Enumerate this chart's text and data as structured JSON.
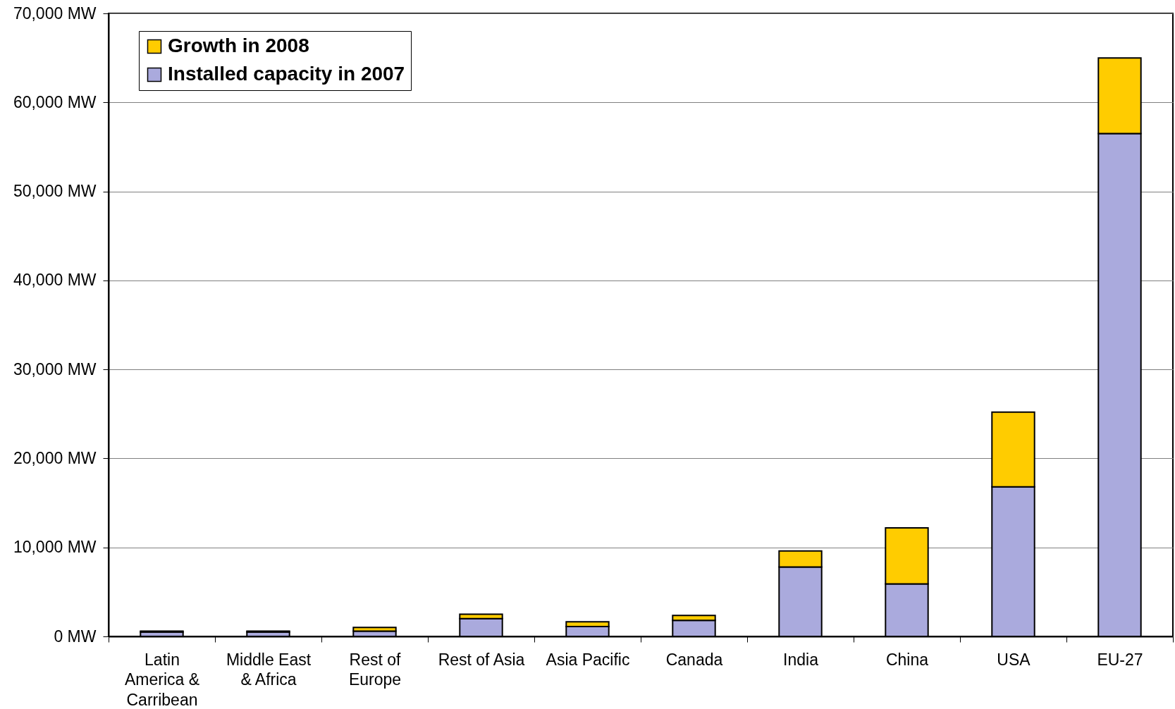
{
  "chart_data": {
    "type": "bar",
    "categories": [
      "Latin America & Carribean",
      "Middle East & Africa",
      "Rest of Europe",
      "Rest of Asia",
      "Asia Pacific",
      "Canada",
      "India",
      "China",
      "USA",
      "EU-27"
    ],
    "series": [
      {
        "name": "Installed capacity in 2007",
        "color": "#aaaadd",
        "values": [
          500,
          500,
          600,
          2000,
          1100,
          1800,
          7800,
          5900,
          16800,
          56500
        ]
      },
      {
        "name": "Growth in 2008",
        "color": "#ffcc00",
        "values": [
          100,
          100,
          400,
          500,
          550,
          550,
          1800,
          6300,
          8400,
          8500
        ]
      }
    ],
    "stacked": true,
    "ylim": [
      0,
      70000
    ],
    "yticks": [
      {
        "value": 0,
        "label": "0 MW"
      },
      {
        "value": 10000,
        "label": "10,000 MW"
      },
      {
        "value": 20000,
        "label": "20,000 MW"
      },
      {
        "value": 30000,
        "label": "30,000 MW"
      },
      {
        "value": 40000,
        "label": "40,000 MW"
      },
      {
        "value": 50000,
        "label": "50,000 MW"
      },
      {
        "value": 60000,
        "label": "60,000 MW"
      },
      {
        "value": 70000,
        "label": "70,000 MW"
      }
    ],
    "grid": "y",
    "legend": "top left"
  }
}
